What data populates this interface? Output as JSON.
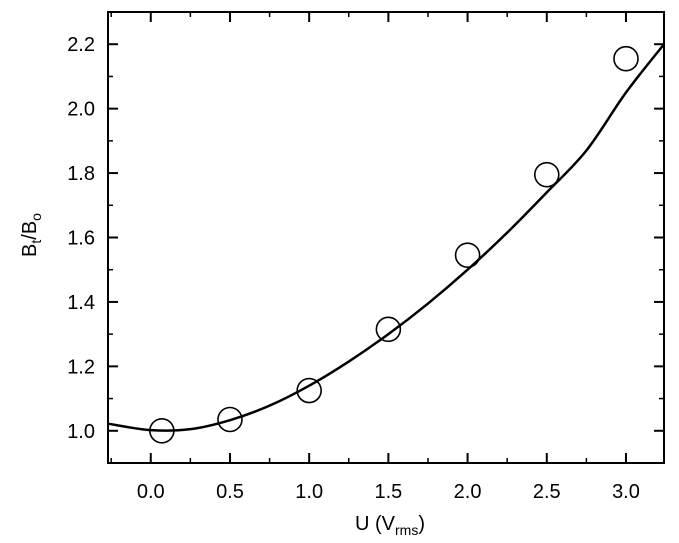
{
  "chart_data": {
    "type": "scatter",
    "xlabel": {
      "main": "U (V",
      "sub": "rms",
      "end": ")"
    },
    "ylabel": {
      "main_1": "B",
      "sub_1": "t",
      "slash": "/B",
      "sub_2": "o"
    },
    "xlim": [
      -0.27,
      3.24
    ],
    "ylim": [
      0.9,
      2.3
    ],
    "x_ticks": [
      0.0,
      0.5,
      1.0,
      1.5,
      2.0,
      2.5,
      3.0
    ],
    "x_tick_labels": [
      "0.0",
      "0.5",
      "1.0",
      "1.5",
      "2.0",
      "2.5",
      "3.0"
    ],
    "y_ticks": [
      1.0,
      1.2,
      1.4,
      1.6,
      1.8,
      2.0,
      2.2
    ],
    "y_tick_labels": [
      "1.0",
      "1.2",
      "1.4",
      "1.6",
      "1.8",
      "2.0",
      "2.2"
    ],
    "grid": false,
    "series": [
      {
        "kind": "markers",
        "marker": "open-circle",
        "x": [
          0.07,
          0.5,
          1.0,
          1.5,
          2.0,
          2.5,
          3.0
        ],
        "y": [
          1.0,
          1.035,
          1.125,
          1.315,
          1.545,
          1.795,
          2.155
        ]
      },
      {
        "kind": "fit-line",
        "x": [
          -0.27,
          0.0,
          0.25,
          0.5,
          0.75,
          1.0,
          1.25,
          1.5,
          1.75,
          2.0,
          2.25,
          2.5,
          2.75,
          3.0,
          3.24
        ],
        "y": [
          1.022,
          1.002,
          1.005,
          1.033,
          1.078,
          1.14,
          1.215,
          1.3,
          1.395,
          1.5,
          1.615,
          1.74,
          1.87,
          2.05,
          2.2
        ]
      }
    ]
  }
}
